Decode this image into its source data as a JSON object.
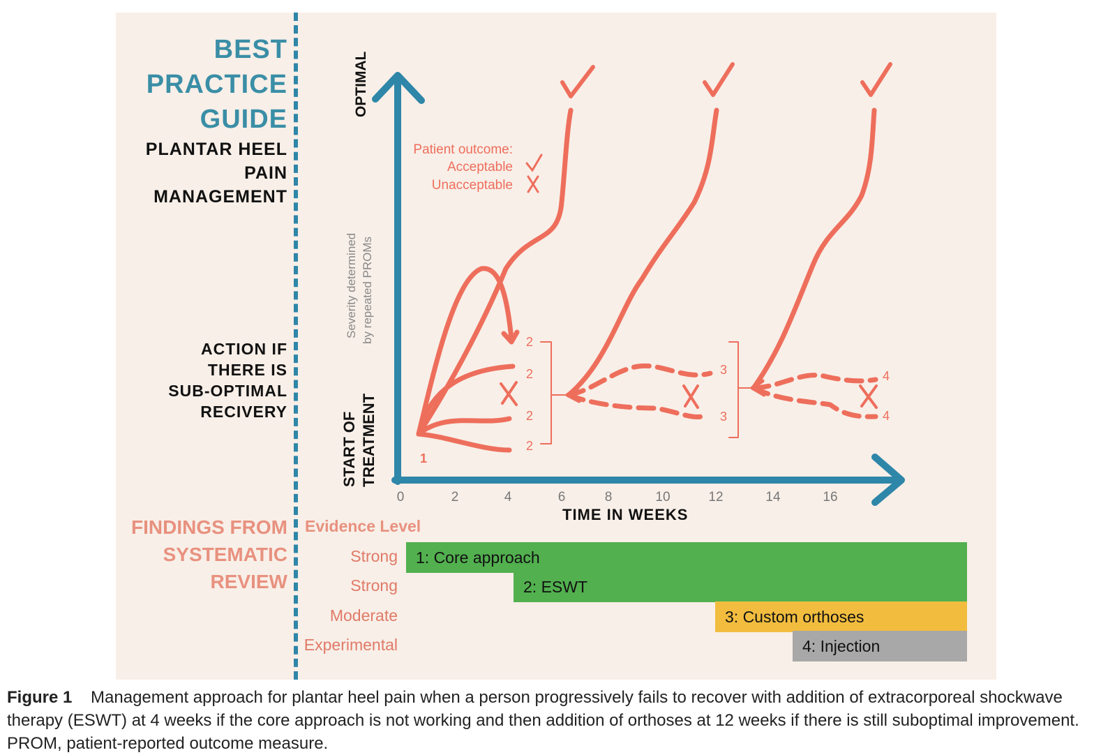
{
  "sidebar": {
    "best": "BEST",
    "practice": "PRACTICE",
    "guide": "GUIDE",
    "subtitle_1": "PLANTAR HEEL",
    "subtitle_2": "PAIN",
    "subtitle_3": "MANAGEMENT",
    "action_1": "ACTION IF",
    "action_2": "THERE IS",
    "action_3": "SUB-OPTIMAL",
    "action_4": "RECIVERY",
    "findings_1": "FINDINGS FROM",
    "findings_2": "SYSTEMATIC",
    "findings_3": "REVIEW"
  },
  "chart": {
    "y_axis_top": "OPTIMAL",
    "y_axis_bottom_1": "START OF",
    "y_axis_bottom_2": "TREATMENT",
    "y_axis_note_1": "Severity determined",
    "y_axis_note_2": "by repeated PROMs",
    "x_axis_title": "TIME IN WEEKS",
    "x_ticks": [
      "0",
      "2",
      "4",
      "6",
      "8",
      "10",
      "12",
      "14",
      "16"
    ],
    "legend_title": "Patient outcome:",
    "legend_acceptable": "Acceptable",
    "legend_unacceptable": "Unacceptable",
    "check_glyph": "✓",
    "cross_glyph": "X",
    "start_label": "1",
    "stage2_labels": [
      "2",
      "2",
      "2",
      "2"
    ],
    "stage3_labels": [
      "3",
      "3"
    ],
    "stage4_labels": [
      "4",
      "4"
    ],
    "colors": {
      "axis": "#2e86a8",
      "line": "#ee6e5c",
      "text": "#ee6e5c"
    }
  },
  "evidence": {
    "header": "Evidence Level",
    "rows": [
      {
        "level": "Strong",
        "treatment": "1: Core approach",
        "color": "#52b04f",
        "start_week": 0
      },
      {
        "level": "Strong",
        "treatment": "2: ESWT",
        "color": "#52b04f",
        "start_week": 4
      },
      {
        "level": "Moderate",
        "treatment": "3: Custom orthoses",
        "color": "#f2bd3f",
        "start_week": 12
      },
      {
        "level": "Experimental",
        "treatment": "4: Injection",
        "color": "#a8a8a8",
        "start_week": 15
      }
    ]
  },
  "caption": {
    "label": "Figure 1",
    "text": "Management approach for plantar heel pain when a person progressively fails to recover with addition of extracorporeal shockwave therapy (ESWT) at 4 weeks if the core approach is not working and then addition of orthoses at 12 weeks if there is still suboptimal improvement. PROM, patient-reported outcome measure."
  }
}
